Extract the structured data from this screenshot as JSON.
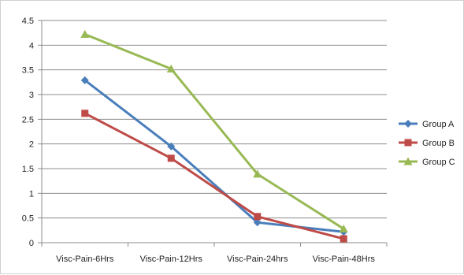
{
  "chart_data": {
    "type": "line",
    "categories": [
      "Visc-Pain-6Hrs",
      "Visc-Pain-12Hrs",
      "Visc-Pain-24hrs",
      "Visc-Pain-48Hrs"
    ],
    "series": [
      {
        "name": "Group A",
        "values": [
          3.29,
          1.95,
          0.41,
          0.22
        ],
        "color": "#4a7ebb",
        "marker": "diamond"
      },
      {
        "name": "Group B",
        "values": [
          2.62,
          1.71,
          0.53,
          0.08
        ],
        "color": "#be4b48",
        "marker": "square"
      },
      {
        "name": "Group C",
        "values": [
          4.22,
          3.52,
          1.39,
          0.28
        ],
        "color": "#98b954",
        "marker": "triangle"
      }
    ],
    "ylim": [
      0,
      4.5
    ],
    "yticks": [
      0,
      0.5,
      1,
      1.5,
      2,
      2.5,
      3,
      3.5,
      4,
      4.5
    ],
    "ytick_labels": [
      "0",
      "0.5",
      "1",
      "1.5",
      "2",
      "2.5",
      "3",
      "3.5",
      "4",
      "4.5"
    ],
    "grid": true,
    "legend_position": "right"
  }
}
